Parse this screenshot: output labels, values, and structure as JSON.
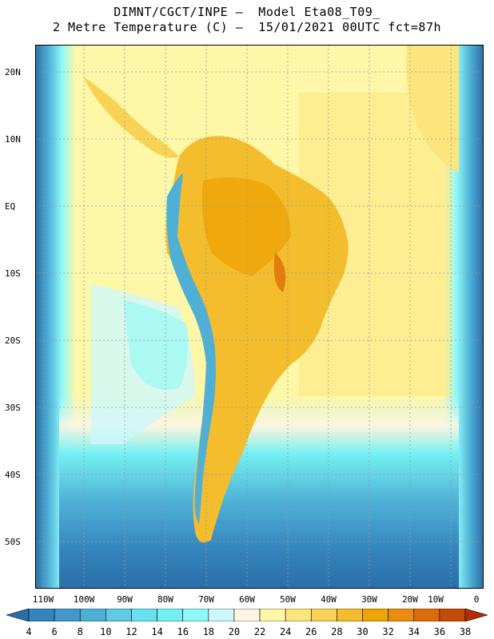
{
  "header": {
    "line1": "DIMNT/CGCT/INPE –  Model Eta08_T09_",
    "line2": "2 Metre Temperature (C) –  15/01/2021 00UTC fct=87h"
  },
  "map": {
    "lat_labels": [
      "20N",
      "10N",
      "EQ",
      "10S",
      "20S",
      "30S",
      "40S",
      "50S"
    ],
    "lon_labels": [
      "110W",
      "100W",
      "90W",
      "80W",
      "70W",
      "60W",
      "50W",
      "40W",
      "30W",
      "20W",
      "10W",
      "0"
    ]
  },
  "colorbar": {
    "ticks": [
      "4",
      "6",
      "8",
      "10",
      "12",
      "14",
      "16",
      "18",
      "20",
      "22",
      "24",
      "26",
      "28",
      "30",
      "32",
      "34",
      "36",
      "38"
    ],
    "colors": [
      "#2a6ea8",
      "#3584bd",
      "#4398c9",
      "#4fb0d6",
      "#5ecbe3",
      "#67e1ee",
      "#74f0f2",
      "#8ff8f8",
      "#cdf7fd",
      "#fef5e4",
      "#fef7a7",
      "#fde57d",
      "#f8d254",
      "#f4bd2e",
      "#eea404",
      "#e98d12",
      "#dd6b08",
      "#c44a05",
      "#b32d00"
    ]
  }
}
